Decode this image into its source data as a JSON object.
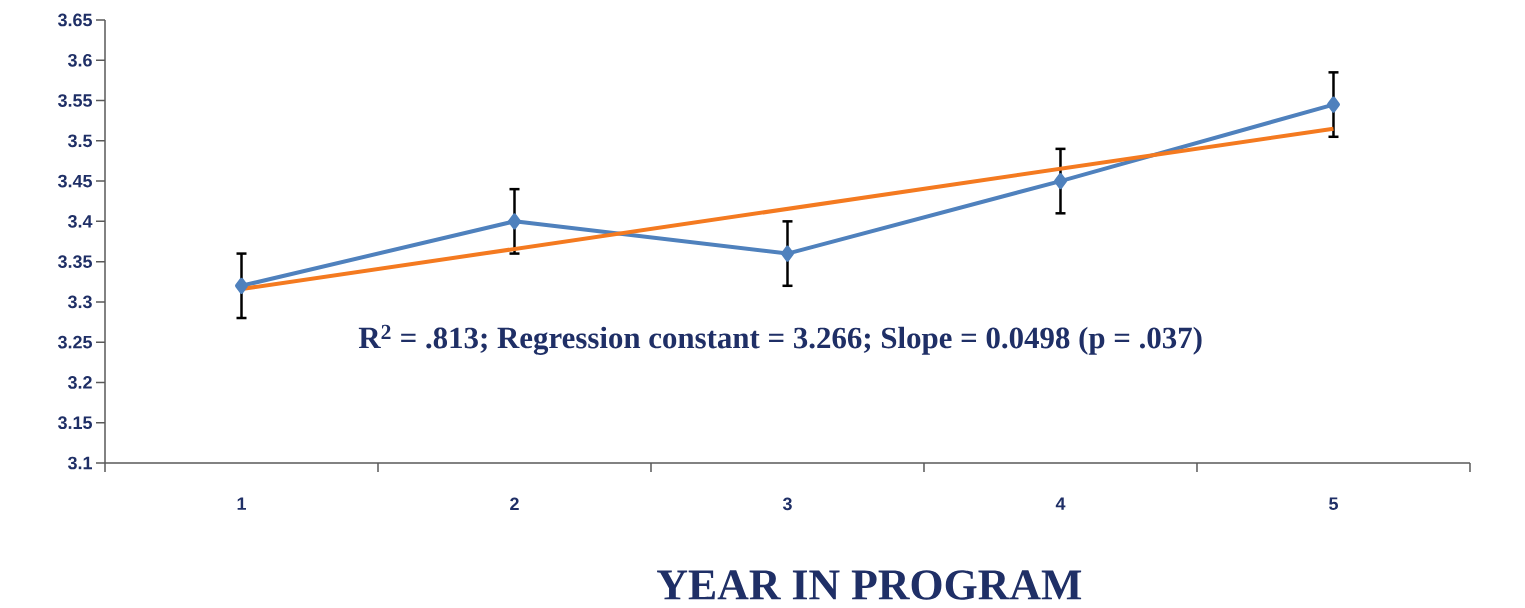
{
  "chart_data": {
    "type": "line",
    "xlabel": "YEAR IN PROGRAM",
    "categories": [
      "1",
      "2",
      "3",
      "4",
      "5"
    ],
    "series": [
      {
        "color": "#4f81bd",
        "values": [
          3.32,
          3.4,
          3.36,
          3.45,
          3.545
        ],
        "errors": [
          0.04,
          0.04,
          0.04,
          0.04,
          0.04
        ],
        "marker": "diamond"
      },
      {
        "type": "line",
        "color": "#f47a20",
        "x": [
          "1",
          "5"
        ],
        "values": [
          3.316,
          3.515
        ],
        "marker": "none"
      }
    ],
    "ylim": [
      3.1,
      3.65
    ],
    "yticks": [
      3.1,
      3.15,
      3.2,
      3.25,
      3.3,
      3.35,
      3.4,
      3.45,
      3.5,
      3.55,
      3.6,
      3.65
    ],
    "annotations": [
      "R$^{2}$ = .813; Regression constant = 3.266; Slope = 0.0498 (p = .037)"
    ],
    "grid": false,
    "line_style": "solid"
  }
}
